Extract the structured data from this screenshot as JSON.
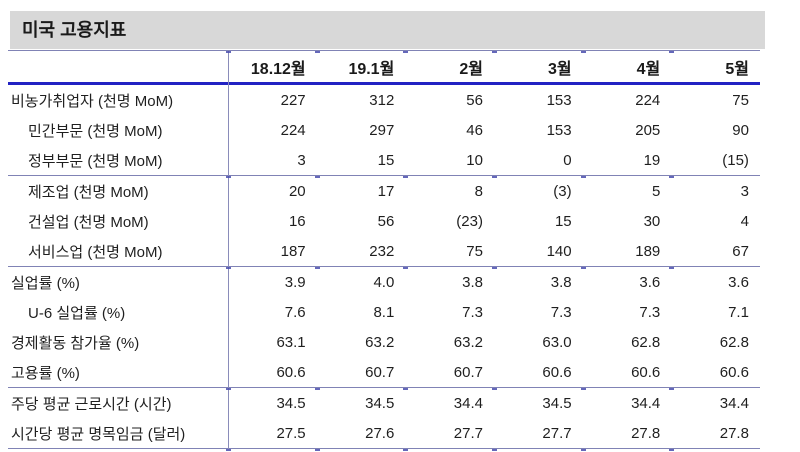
{
  "title": "미국 고용지표",
  "table": {
    "columns": [
      "18.12월",
      "19.1월",
      "2월",
      "3월",
      "4월",
      "5월"
    ],
    "groups": [
      {
        "rows": [
          {
            "label": "비농가취업자 (천명 MoM)",
            "indent": false,
            "values": [
              "227",
              "312",
              "56",
              "153",
              "224",
              "75"
            ]
          },
          {
            "label": "민간부문 (천명 MoM)",
            "indent": true,
            "values": [
              "224",
              "297",
              "46",
              "153",
              "205",
              "90"
            ]
          },
          {
            "label": "정부부문 (천명 MoM)",
            "indent": true,
            "values": [
              "3",
              "15",
              "10",
              "0",
              "19",
              "(15)"
            ]
          }
        ]
      },
      {
        "rows": [
          {
            "label": "제조업 (천명 MoM)",
            "indent": true,
            "values": [
              "20",
              "17",
              "8",
              "(3)",
              "5",
              "3"
            ]
          },
          {
            "label": "건설업 (천명 MoM)",
            "indent": true,
            "values": [
              "16",
              "56",
              "(23)",
              "15",
              "30",
              "4"
            ]
          },
          {
            "label": "서비스업 (천명 MoM)",
            "indent": true,
            "values": [
              "187",
              "232",
              "75",
              "140",
              "189",
              "67"
            ]
          }
        ]
      },
      {
        "rows": [
          {
            "label": "실업률 (%)",
            "indent": false,
            "values": [
              "3.9",
              "4.0",
              "3.8",
              "3.8",
              "3.6",
              "3.6"
            ]
          },
          {
            "label": "U-6 실업률 (%)",
            "indent": true,
            "values": [
              "7.6",
              "8.1",
              "7.3",
              "7.3",
              "7.3",
              "7.1"
            ]
          },
          {
            "label": "경제활동 참가율 (%)",
            "indent": false,
            "values": [
              "63.1",
              "63.2",
              "63.2",
              "63.0",
              "62.8",
              "62.8"
            ]
          },
          {
            "label": "고용률 (%)",
            "indent": false,
            "values": [
              "60.6",
              "60.7",
              "60.7",
              "60.6",
              "60.6",
              "60.6"
            ]
          }
        ]
      },
      {
        "rows": [
          {
            "label": "주당 평균 근로시간 (시간)",
            "indent": false,
            "values": [
              "34.5",
              "34.5",
              "34.4",
              "34.5",
              "34.4",
              "34.4"
            ]
          },
          {
            "label": "시간당 평균 명목임금 (달러)",
            "indent": false,
            "values": [
              "27.5",
              "27.6",
              "27.7",
              "27.7",
              "27.8",
              "27.8"
            ]
          }
        ]
      }
    ]
  },
  "colors": {
    "title_bar_gray": "#d8d8d8",
    "header_rule_blue": "#2222c3",
    "thin_rule_blue": "#8083b5",
    "text": "#1f1f1f"
  }
}
